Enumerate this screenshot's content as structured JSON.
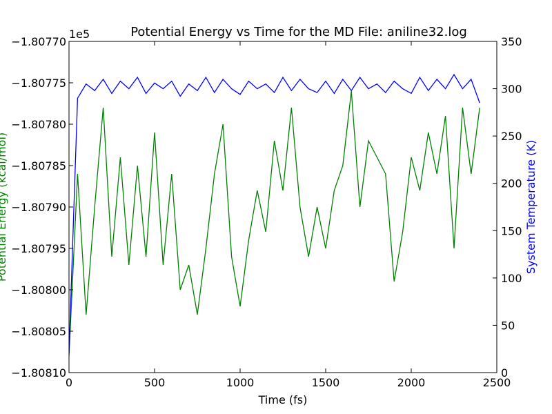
{
  "chart_data": {
    "type": "line",
    "title": "Potential Energy vs Time for the MD File: aniline32.log",
    "xlabel": "Time (fs)",
    "ylabel_left": "Potential Energy (kcal/mol)",
    "ylabel_right": "System Temperature (K)",
    "y_offset_label": "1e5",
    "xlim": [
      0,
      2500
    ],
    "ylim_left": [
      -1.8081,
      -1.8077
    ],
    "ylim_right": [
      0,
      350
    ],
    "x_ticks": [
      "0",
      "500",
      "1000",
      "1500",
      "2000",
      "2500"
    ],
    "y_left_ticks": [
      "−1.80810",
      "−1.80805",
      "−1.80800",
      "−1.80795",
      "−1.80790",
      "−1.80785",
      "−1.80780",
      "−1.80775",
      "−1.80770"
    ],
    "y_right_ticks": [
      "0",
      "50",
      "100",
      "150",
      "200",
      "250",
      "300",
      "350"
    ],
    "grid": false,
    "colors": {
      "potential": "#008000",
      "temperature": "#0000ff",
      "axes": "#000000"
    },
    "series": [
      {
        "key": "potential",
        "axis": "left",
        "x": [
          0,
          50,
          100,
          150,
          200,
          250,
          300,
          350,
          400,
          450,
          500,
          550,
          600,
          650,
          700,
          750,
          800,
          850,
          900,
          950,
          1000,
          1050,
          1100,
          1150,
          1200,
          1250,
          1300,
          1350,
          1400,
          1450,
          1500,
          1550,
          1600,
          1650,
          1700,
          1750,
          1800,
          1850,
          1900,
          1950,
          2000,
          2050,
          2100,
          2150,
          2200,
          2250,
          2300,
          2350,
          2400
        ],
        "values": [
          -1.80808,
          -1.80786,
          -1.80803,
          -1.8079,
          -1.80778,
          -1.80796,
          -1.80784,
          -1.80797,
          -1.80785,
          -1.80796,
          -1.80781,
          -1.80797,
          -1.80786,
          -1.808,
          -1.80797,
          -1.80803,
          -1.80795,
          -1.80786,
          -1.8078,
          -1.80796,
          -1.80802,
          -1.80794,
          -1.80788,
          -1.80793,
          -1.80782,
          -1.80788,
          -1.80778,
          -1.8079,
          -1.80796,
          -1.8079,
          -1.80795,
          -1.80788,
          -1.80785,
          -1.80776,
          -1.8079,
          -1.80782,
          -1.80784,
          -1.80786,
          -1.80799,
          -1.80793,
          -1.80784,
          -1.80788,
          -1.80781,
          -1.80786,
          -1.80779,
          -1.80795,
          -1.80778,
          -1.80786,
          -1.80778
        ]
      },
      {
        "key": "temperature",
        "axis": "right",
        "x": [
          0,
          50,
          100,
          150,
          200,
          250,
          300,
          350,
          400,
          450,
          500,
          550,
          600,
          650,
          700,
          750,
          800,
          850,
          900,
          950,
          1000,
          1050,
          1100,
          1150,
          1200,
          1250,
          1300,
          1350,
          1400,
          1450,
          1500,
          1550,
          1600,
          1650,
          1700,
          1750,
          1800,
          1850,
          1900,
          1950,
          2000,
          2050,
          2100,
          2150,
          2200,
          2250,
          2300,
          2350,
          2400
        ],
        "values": [
          20,
          290,
          305,
          298,
          310,
          295,
          308,
          300,
          312,
          295,
          306,
          300,
          308,
          292,
          305,
          298,
          312,
          296,
          310,
          300,
          294,
          308,
          300,
          305,
          296,
          312,
          298,
          310,
          300,
          296,
          308,
          295,
          310,
          298,
          312,
          300,
          305,
          296,
          308,
          300,
          295,
          312,
          298,
          310,
          300,
          315,
          300,
          310,
          285
        ]
      }
    ]
  }
}
